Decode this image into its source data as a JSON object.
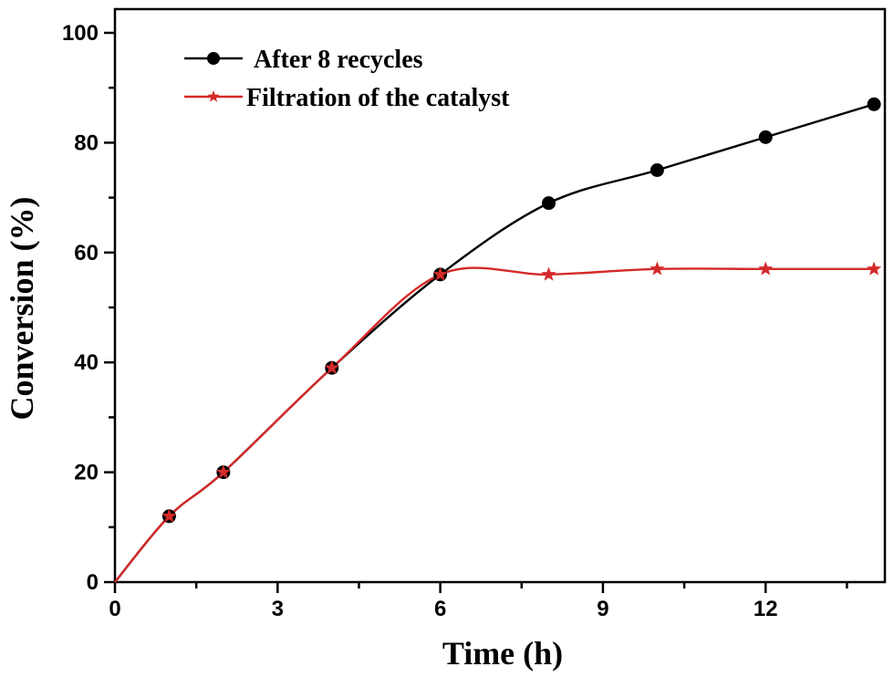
{
  "chart_data": {
    "type": "line",
    "xlabel": "Time (h)",
    "ylabel": "Conversion (%)",
    "xlim": [
      0,
      14.2
    ],
    "ylim": [
      0,
      100
    ],
    "xticks": [
      0,
      3,
      6,
      9,
      12
    ],
    "yticks": [
      0,
      20,
      40,
      60,
      80,
      100
    ],
    "grid": false,
    "legend_position": "top-left",
    "series": [
      {
        "name": "After 8 recycles",
        "color": "#000000",
        "marker": "circle",
        "x": [
          0,
          1,
          2,
          4,
          6,
          8,
          10,
          12,
          14
        ],
        "y": [
          0,
          12,
          20,
          39,
          56,
          69,
          75,
          81,
          87
        ]
      },
      {
        "name": "Filtration of the catalyst",
        "color": "#d42a2a",
        "marker": "star",
        "x": [
          0,
          1,
          2,
          4,
          6,
          8,
          10,
          12,
          14
        ],
        "y": [
          0,
          12,
          20,
          39,
          56,
          56,
          57,
          57,
          57
        ]
      }
    ]
  }
}
